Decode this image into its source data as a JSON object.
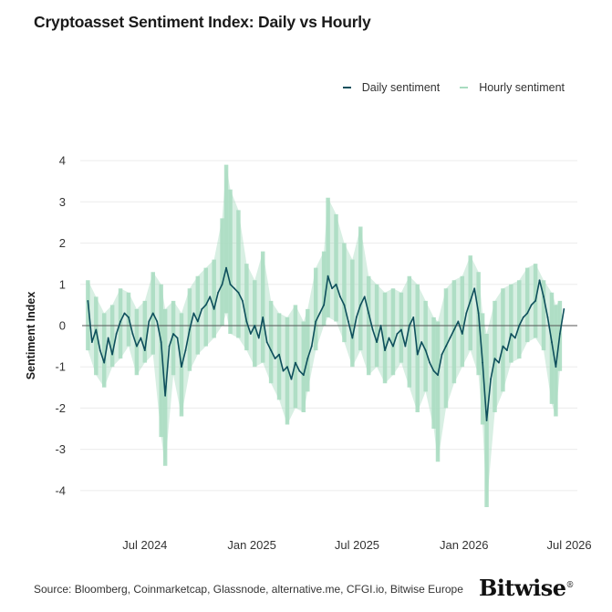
{
  "chart_data": {
    "type": "line",
    "title": "Cryptoasset Sentiment Index: Daily vs Hourly",
    "xlabel": "",
    "ylabel": "Sentiment Index",
    "ylim": [
      -4.6,
      4.4
    ],
    "yticks": [
      4,
      3,
      2,
      1,
      0,
      -1,
      -2,
      -3,
      -4
    ],
    "xlim": [
      "2024-03-15",
      "2026-07-15"
    ],
    "xticks": [
      {
        "date": "2024-07-01",
        "label": "Jul 2024"
      },
      {
        "date": "2025-01-01",
        "label": "Jan 2025"
      },
      {
        "date": "2025-07-01",
        "label": "Jul 2025"
      },
      {
        "date": "2026-01-01",
        "label": "Jan 2026"
      },
      {
        "date": "2026-07-01",
        "label": "Jul 2026"
      }
    ],
    "grid": true,
    "legend": "top-right",
    "zero_line": true,
    "series": [
      {
        "name": "Hourly sentiment",
        "color": "#a8dcc0",
        "style": "spikes",
        "points": [
          {
            "x": "2024-03-25",
            "low": -0.6,
            "high": 1.1
          },
          {
            "x": "2024-04-08",
            "low": -1.2,
            "high": 0.7
          },
          {
            "x": "2024-04-22",
            "low": -1.5,
            "high": 0.3
          },
          {
            "x": "2024-05-06",
            "low": -1.0,
            "high": 0.5
          },
          {
            "x": "2024-05-20",
            "low": -0.8,
            "high": 0.9
          },
          {
            "x": "2024-06-03",
            "low": -0.5,
            "high": 0.8
          },
          {
            "x": "2024-06-17",
            "low": -1.2,
            "high": 0.4
          },
          {
            "x": "2024-07-01",
            "low": -0.9,
            "high": 0.6
          },
          {
            "x": "2024-07-15",
            "low": -0.7,
            "high": 1.3
          },
          {
            "x": "2024-07-29",
            "low": -2.7,
            "high": 1.0
          },
          {
            "x": "2024-08-05",
            "low": -3.4,
            "high": 0.4
          },
          {
            "x": "2024-08-19",
            "low": -1.2,
            "high": 0.6
          },
          {
            "x": "2024-09-02",
            "low": -2.2,
            "high": 0.3
          },
          {
            "x": "2024-09-16",
            "low": -1.1,
            "high": 0.9
          },
          {
            "x": "2024-09-30",
            "low": -0.7,
            "high": 1.2
          },
          {
            "x": "2024-10-14",
            "low": -0.5,
            "high": 1.4
          },
          {
            "x": "2024-10-28",
            "low": -0.3,
            "high": 1.6
          },
          {
            "x": "2024-11-11",
            "low": 0.0,
            "high": 2.6
          },
          {
            "x": "2024-11-18",
            "low": 0.3,
            "high": 3.9
          },
          {
            "x": "2024-11-25",
            "low": -0.2,
            "high": 3.3
          },
          {
            "x": "2024-12-09",
            "low": -0.3,
            "high": 2.8
          },
          {
            "x": "2024-12-23",
            "low": -0.6,
            "high": 1.5
          },
          {
            "x": "2025-01-06",
            "low": -1.0,
            "high": 1.1
          },
          {
            "x": "2025-01-20",
            "low": -0.9,
            "high": 1.8
          },
          {
            "x": "2025-02-03",
            "low": -1.4,
            "high": 0.6
          },
          {
            "x": "2025-02-17",
            "low": -1.8,
            "high": 0.3
          },
          {
            "x": "2025-03-03",
            "low": -2.4,
            "high": 0.2
          },
          {
            "x": "2025-03-17",
            "low": -2.0,
            "high": 0.5
          },
          {
            "x": "2025-03-31",
            "low": -2.1,
            "high": 0.1
          },
          {
            "x": "2025-04-07",
            "low": -1.6,
            "high": 0.4
          },
          {
            "x": "2025-04-21",
            "low": -0.6,
            "high": 1.4
          },
          {
            "x": "2025-05-05",
            "low": 0.0,
            "high": 1.8
          },
          {
            "x": "2025-05-12",
            "low": 0.2,
            "high": 3.1
          },
          {
            "x": "2025-05-26",
            "low": 0.1,
            "high": 2.7
          },
          {
            "x": "2025-06-09",
            "low": -0.4,
            "high": 2.0
          },
          {
            "x": "2025-06-23",
            "low": -1.0,
            "high": 1.6
          },
          {
            "x": "2025-07-07",
            "low": -0.6,
            "high": 2.4
          },
          {
            "x": "2025-07-21",
            "low": -1.2,
            "high": 1.2
          },
          {
            "x": "2025-08-04",
            "low": -1.0,
            "high": 1.0
          },
          {
            "x": "2025-08-18",
            "low": -1.4,
            "high": 0.8
          },
          {
            "x": "2025-09-01",
            "low": -1.2,
            "high": 0.9
          },
          {
            "x": "2025-09-15",
            "low": -0.9,
            "high": 0.8
          },
          {
            "x": "2025-09-29",
            "low": -1.5,
            "high": 1.2
          },
          {
            "x": "2025-10-13",
            "low": -2.1,
            "high": 1.0
          },
          {
            "x": "2025-10-27",
            "low": -1.6,
            "high": 0.6
          },
          {
            "x": "2025-11-10",
            "low": -2.5,
            "high": 0.2
          },
          {
            "x": "2025-11-17",
            "low": -3.3,
            "high": 0.1
          },
          {
            "x": "2025-12-01",
            "low": -2.0,
            "high": 0.9
          },
          {
            "x": "2025-12-15",
            "low": -1.4,
            "high": 1.1
          },
          {
            "x": "2025-12-29",
            "low": -1.0,
            "high": 1.2
          },
          {
            "x": "2026-01-12",
            "low": -0.6,
            "high": 1.7
          },
          {
            "x": "2026-01-26",
            "low": -1.2,
            "high": 1.3
          },
          {
            "x": "2026-02-02",
            "low": -2.4,
            "high": 0.3
          },
          {
            "x": "2026-02-09",
            "low": -4.4,
            "high": -0.2
          },
          {
            "x": "2026-02-23",
            "low": -2.1,
            "high": 0.6
          },
          {
            "x": "2026-03-09",
            "low": -1.6,
            "high": 0.9
          },
          {
            "x": "2026-03-23",
            "low": -0.9,
            "high": 1.0
          },
          {
            "x": "2026-04-06",
            "low": -0.8,
            "high": 1.1
          },
          {
            "x": "2026-04-20",
            "low": -0.4,
            "high": 1.4
          },
          {
            "x": "2026-05-04",
            "low": -0.3,
            "high": 1.5
          },
          {
            "x": "2026-05-18",
            "low": -0.6,
            "high": 1.1
          },
          {
            "x": "2026-06-01",
            "low": -1.9,
            "high": 0.8
          },
          {
            "x": "2026-06-08",
            "low": -2.2,
            "high": 0.5
          },
          {
            "x": "2026-06-15",
            "low": -1.1,
            "high": 0.6
          }
        ]
      },
      {
        "name": "Daily sentiment",
        "color": "#0e4f5c",
        "style": "line",
        "points": [
          {
            "x": "2024-03-25",
            "y": 0.6
          },
          {
            "x": "2024-04-01",
            "y": -0.4
          },
          {
            "x": "2024-04-08",
            "y": -0.1
          },
          {
            "x": "2024-04-15",
            "y": -0.6
          },
          {
            "x": "2024-04-22",
            "y": -0.9
          },
          {
            "x": "2024-04-29",
            "y": -0.3
          },
          {
            "x": "2024-05-06",
            "y": -0.7
          },
          {
            "x": "2024-05-13",
            "y": -0.2
          },
          {
            "x": "2024-05-20",
            "y": 0.1
          },
          {
            "x": "2024-05-27",
            "y": 0.3
          },
          {
            "x": "2024-06-03",
            "y": 0.2
          },
          {
            "x": "2024-06-10",
            "y": -0.2
          },
          {
            "x": "2024-06-17",
            "y": -0.5
          },
          {
            "x": "2024-06-24",
            "y": -0.3
          },
          {
            "x": "2024-07-01",
            "y": -0.6
          },
          {
            "x": "2024-07-08",
            "y": 0.1
          },
          {
            "x": "2024-07-15",
            "y": 0.3
          },
          {
            "x": "2024-07-22",
            "y": 0.1
          },
          {
            "x": "2024-07-29",
            "y": -0.4
          },
          {
            "x": "2024-08-05",
            "y": -1.7
          },
          {
            "x": "2024-08-12",
            "y": -0.5
          },
          {
            "x": "2024-08-19",
            "y": -0.2
          },
          {
            "x": "2024-08-26",
            "y": -0.3
          },
          {
            "x": "2024-09-02",
            "y": -1.0
          },
          {
            "x": "2024-09-09",
            "y": -0.6
          },
          {
            "x": "2024-09-16",
            "y": -0.1
          },
          {
            "x": "2024-09-23",
            "y": 0.3
          },
          {
            "x": "2024-09-30",
            "y": 0.1
          },
          {
            "x": "2024-10-07",
            "y": 0.4
          },
          {
            "x": "2024-10-14",
            "y": 0.5
          },
          {
            "x": "2024-10-21",
            "y": 0.7
          },
          {
            "x": "2024-10-28",
            "y": 0.4
          },
          {
            "x": "2024-11-04",
            "y": 0.8
          },
          {
            "x": "2024-11-11",
            "y": 1.0
          },
          {
            "x": "2024-11-18",
            "y": 1.4
          },
          {
            "x": "2024-11-25",
            "y": 1.0
          },
          {
            "x": "2024-12-02",
            "y": 0.9
          },
          {
            "x": "2024-12-09",
            "y": 0.8
          },
          {
            "x": "2024-12-16",
            "y": 0.6
          },
          {
            "x": "2024-12-23",
            "y": 0.1
          },
          {
            "x": "2024-12-30",
            "y": -0.2
          },
          {
            "x": "2025-01-06",
            "y": 0.0
          },
          {
            "x": "2025-01-13",
            "y": -0.3
          },
          {
            "x": "2025-01-20",
            "y": 0.2
          },
          {
            "x": "2025-01-27",
            "y": -0.4
          },
          {
            "x": "2025-02-03",
            "y": -0.6
          },
          {
            "x": "2025-02-10",
            "y": -0.8
          },
          {
            "x": "2025-02-17",
            "y": -0.7
          },
          {
            "x": "2025-02-24",
            "y": -1.1
          },
          {
            "x": "2025-03-03",
            "y": -1.0
          },
          {
            "x": "2025-03-10",
            "y": -1.3
          },
          {
            "x": "2025-03-17",
            "y": -0.9
          },
          {
            "x": "2025-03-24",
            "y": -1.1
          },
          {
            "x": "2025-03-31",
            "y": -1.2
          },
          {
            "x": "2025-04-07",
            "y": -0.8
          },
          {
            "x": "2025-04-14",
            "y": -0.5
          },
          {
            "x": "2025-04-21",
            "y": 0.1
          },
          {
            "x": "2025-04-28",
            "y": 0.3
          },
          {
            "x": "2025-05-05",
            "y": 0.5
          },
          {
            "x": "2025-05-12",
            "y": 1.2
          },
          {
            "x": "2025-05-19",
            "y": 0.9
          },
          {
            "x": "2025-05-26",
            "y": 1.0
          },
          {
            "x": "2025-06-02",
            "y": 0.7
          },
          {
            "x": "2025-06-09",
            "y": 0.5
          },
          {
            "x": "2025-06-16",
            "y": 0.1
          },
          {
            "x": "2025-06-23",
            "y": -0.3
          },
          {
            "x": "2025-06-30",
            "y": 0.2
          },
          {
            "x": "2025-07-07",
            "y": 0.5
          },
          {
            "x": "2025-07-14",
            "y": 0.7
          },
          {
            "x": "2025-07-21",
            "y": 0.3
          },
          {
            "x": "2025-07-28",
            "y": -0.1
          },
          {
            "x": "2025-08-04",
            "y": -0.4
          },
          {
            "x": "2025-08-11",
            "y": 0.0
          },
          {
            "x": "2025-08-18",
            "y": -0.6
          },
          {
            "x": "2025-08-25",
            "y": -0.3
          },
          {
            "x": "2025-09-01",
            "y": -0.5
          },
          {
            "x": "2025-09-08",
            "y": -0.2
          },
          {
            "x": "2025-09-15",
            "y": -0.1
          },
          {
            "x": "2025-09-22",
            "y": -0.5
          },
          {
            "x": "2025-09-29",
            "y": 0.0
          },
          {
            "x": "2025-10-06",
            "y": 0.2
          },
          {
            "x": "2025-10-13",
            "y": -0.7
          },
          {
            "x": "2025-10-20",
            "y": -0.4
          },
          {
            "x": "2025-10-27",
            "y": -0.6
          },
          {
            "x": "2025-11-03",
            "y": -0.9
          },
          {
            "x": "2025-11-10",
            "y": -1.1
          },
          {
            "x": "2025-11-17",
            "y": -1.2
          },
          {
            "x": "2025-11-24",
            "y": -0.7
          },
          {
            "x": "2025-12-01",
            "y": -0.5
          },
          {
            "x": "2025-12-08",
            "y": -0.3
          },
          {
            "x": "2025-12-15",
            "y": -0.1
          },
          {
            "x": "2025-12-22",
            "y": 0.1
          },
          {
            "x": "2025-12-29",
            "y": -0.2
          },
          {
            "x": "2026-01-05",
            "y": 0.3
          },
          {
            "x": "2026-01-12",
            "y": 0.6
          },
          {
            "x": "2026-01-19",
            "y": 0.9
          },
          {
            "x": "2026-01-26",
            "y": 0.3
          },
          {
            "x": "2026-02-02",
            "y": -0.9
          },
          {
            "x": "2026-02-09",
            "y": -2.3
          },
          {
            "x": "2026-02-16",
            "y": -1.3
          },
          {
            "x": "2026-02-23",
            "y": -0.8
          },
          {
            "x": "2026-03-02",
            "y": -0.9
          },
          {
            "x": "2026-03-09",
            "y": -0.5
          },
          {
            "x": "2026-03-16",
            "y": -0.6
          },
          {
            "x": "2026-03-23",
            "y": -0.2
          },
          {
            "x": "2026-03-30",
            "y": -0.3
          },
          {
            "x": "2026-04-06",
            "y": 0.0
          },
          {
            "x": "2026-04-13",
            "y": 0.2
          },
          {
            "x": "2026-04-20",
            "y": 0.3
          },
          {
            "x": "2026-04-27",
            "y": 0.5
          },
          {
            "x": "2026-05-04",
            "y": 0.6
          },
          {
            "x": "2026-05-11",
            "y": 1.1
          },
          {
            "x": "2026-05-18",
            "y": 0.7
          },
          {
            "x": "2026-05-25",
            "y": 0.2
          },
          {
            "x": "2026-06-01",
            "y": -0.4
          },
          {
            "x": "2026-06-08",
            "y": -1.0
          },
          {
            "x": "2026-06-15",
            "y": -0.2
          },
          {
            "x": "2026-06-22",
            "y": 0.4
          }
        ]
      }
    ]
  },
  "footer": {
    "source": "Source: Bloomberg, Coinmarketcap, Glassnode, alternative.me, CFGI.io, Bitwise Europe",
    "brand": "Bitwise",
    "brand_mark": "®"
  }
}
